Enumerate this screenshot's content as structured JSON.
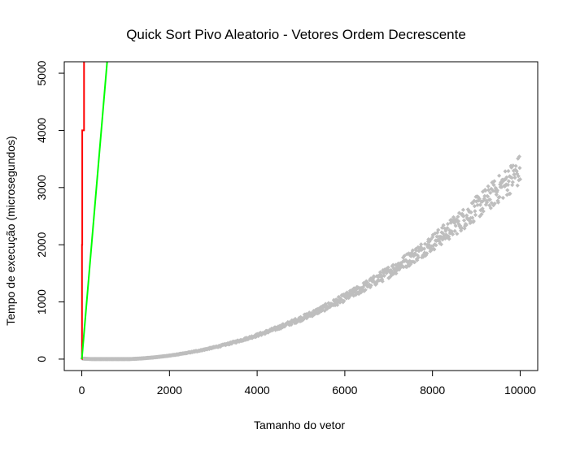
{
  "chart_data": {
    "type": "scatter",
    "title": "Quick Sort Pivo Aleatorio - Vetores Ordem Decrescente",
    "xlabel": "Tamanho do vetor",
    "ylabel": "Tempo de execução (microsegundos)",
    "xlim": [
      -400,
      10400
    ],
    "ylim": [
      -200,
      5200
    ],
    "xticks": [
      0,
      2000,
      4000,
      6000,
      8000,
      10000
    ],
    "xtick_labels": [
      "0",
      "2000",
      "4000",
      "6000",
      "8000",
      "10000"
    ],
    "yticks": [
      0,
      1000,
      2000,
      3000,
      4000,
      5000
    ],
    "ytick_labels": [
      "0",
      "1000",
      "2000",
      "3000",
      "4000",
      "5000"
    ],
    "grid": false,
    "series": [
      {
        "kind": "points",
        "color": "#bebebe",
        "marker": "diamond",
        "x_start": 10,
        "x_end": 10000,
        "x_step": 10,
        "trend_formula": "y = 3.8e-5 * x^2 - 0.05 * x + 10",
        "spread_fraction": 0.06,
        "values_note": "approximate trend"
      },
      {
        "kind": "line",
        "color": "#ff0000",
        "x": [
          0,
          5,
          5,
          10,
          10,
          50,
          50
        ],
        "y": [
          0,
          0,
          2000,
          2000,
          4000,
          4000,
          5400
        ]
      },
      {
        "kind": "line",
        "color": "#00ff00",
        "x": [
          0,
          600
        ],
        "y": [
          0,
          5400
        ]
      }
    ]
  }
}
